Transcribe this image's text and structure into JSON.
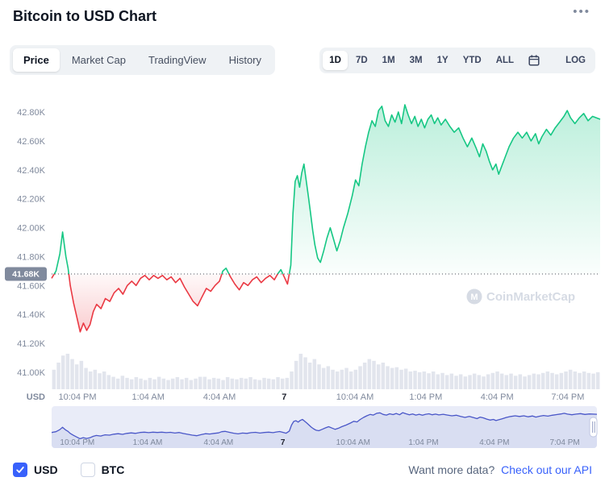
{
  "header": {
    "title": "Bitcoin to USD Chart",
    "menu_icon": "•••"
  },
  "tabs": {
    "active": "Price",
    "items": [
      "Price",
      "Market Cap",
      "TradingView",
      "History"
    ]
  },
  "ranges": {
    "active": "1D",
    "items": [
      "1D",
      "7D",
      "1M",
      "3M",
      "1Y",
      "YTD",
      "ALL"
    ],
    "log_label": "LOG"
  },
  "footer": {
    "usd_label": "USD",
    "usd_checked": true,
    "btc_label": "BTC",
    "btc_checked": false,
    "prompt": "Want more data?",
    "link_label": "Check out our API"
  },
  "chart_data": {
    "type": "line",
    "title": "Bitcoin to USD, 1-day chart",
    "watermark": "CoinMarketCap",
    "y_unit": "USD",
    "reference_price": 41680,
    "reference_label": "41.68K",
    "axis": {
      "price_min": 41.0,
      "price_max": 42.8,
      "grid": false
    },
    "y_ticks": [
      {
        "label": "42.80K",
        "value": 42.8
      },
      {
        "label": "42.60K",
        "value": 42.6
      },
      {
        "label": "42.40K",
        "value": 42.4
      },
      {
        "label": "42.20K",
        "value": 42.2
      },
      {
        "label": "42.00K",
        "value": 42.0
      },
      {
        "label": "41.80K",
        "value": 41.8
      },
      {
        "label": "41.60K",
        "value": 41.6
      },
      {
        "label": "41.40K",
        "value": 41.4
      },
      {
        "label": "41.20K",
        "value": 41.2
      },
      {
        "label": "41.00K",
        "value": 41.0
      }
    ],
    "x_labels": [
      {
        "label": "10:04 PM",
        "t": 0.047
      },
      {
        "label": "1:04 AM",
        "t": 0.176
      },
      {
        "label": "4:04 AM",
        "t": 0.306
      },
      {
        "label": "7",
        "t": 0.424,
        "bold": true
      },
      {
        "label": "10:04 AM",
        "t": 0.553
      },
      {
        "label": "1:04 PM",
        "t": 0.682
      },
      {
        "label": "4:04 PM",
        "t": 0.812
      },
      {
        "label": "7:04 PM",
        "t": 0.941
      }
    ],
    "points": [
      [
        0.0,
        41.65
      ],
      [
        0.008,
        41.7
      ],
      [
        0.015,
        41.82
      ],
      [
        0.02,
        41.97
      ],
      [
        0.026,
        41.8
      ],
      [
        0.03,
        41.72
      ],
      [
        0.034,
        41.6
      ],
      [
        0.04,
        41.48
      ],
      [
        0.046,
        41.38
      ],
      [
        0.052,
        41.28
      ],
      [
        0.058,
        41.34
      ],
      [
        0.064,
        41.29
      ],
      [
        0.07,
        41.33
      ],
      [
        0.076,
        41.42
      ],
      [
        0.082,
        41.47
      ],
      [
        0.09,
        41.44
      ],
      [
        0.098,
        41.51
      ],
      [
        0.106,
        41.49
      ],
      [
        0.114,
        41.55
      ],
      [
        0.122,
        41.58
      ],
      [
        0.13,
        41.54
      ],
      [
        0.138,
        41.6
      ],
      [
        0.146,
        41.63
      ],
      [
        0.154,
        41.6
      ],
      [
        0.162,
        41.65
      ],
      [
        0.17,
        41.67
      ],
      [
        0.178,
        41.64
      ],
      [
        0.186,
        41.67
      ],
      [
        0.194,
        41.65
      ],
      [
        0.202,
        41.67
      ],
      [
        0.21,
        41.64
      ],
      [
        0.218,
        41.66
      ],
      [
        0.226,
        41.62
      ],
      [
        0.234,
        41.65
      ],
      [
        0.242,
        41.59
      ],
      [
        0.25,
        41.54
      ],
      [
        0.258,
        41.49
      ],
      [
        0.266,
        41.46
      ],
      [
        0.274,
        41.52
      ],
      [
        0.282,
        41.58
      ],
      [
        0.29,
        41.56
      ],
      [
        0.298,
        41.6
      ],
      [
        0.306,
        41.63
      ],
      [
        0.312,
        41.7
      ],
      [
        0.318,
        41.72
      ],
      [
        0.326,
        41.66
      ],
      [
        0.334,
        41.61
      ],
      [
        0.342,
        41.57
      ],
      [
        0.35,
        41.62
      ],
      [
        0.358,
        41.6
      ],
      [
        0.366,
        41.64
      ],
      [
        0.374,
        41.66
      ],
      [
        0.382,
        41.62
      ],
      [
        0.39,
        41.65
      ],
      [
        0.398,
        41.67
      ],
      [
        0.406,
        41.64
      ],
      [
        0.412,
        41.68
      ],
      [
        0.418,
        41.71
      ],
      [
        0.424,
        41.66
      ],
      [
        0.43,
        41.61
      ],
      [
        0.436,
        41.74
      ],
      [
        0.44,
        42.1
      ],
      [
        0.444,
        42.32
      ],
      [
        0.448,
        42.36
      ],
      [
        0.452,
        42.28
      ],
      [
        0.456,
        42.38
      ],
      [
        0.46,
        42.44
      ],
      [
        0.464,
        42.33
      ],
      [
        0.468,
        42.22
      ],
      [
        0.472,
        42.1
      ],
      [
        0.476,
        41.98
      ],
      [
        0.48,
        41.88
      ],
      [
        0.485,
        41.79
      ],
      [
        0.49,
        41.76
      ],
      [
        0.496,
        41.84
      ],
      [
        0.502,
        41.93
      ],
      [
        0.508,
        42.0
      ],
      [
        0.514,
        41.92
      ],
      [
        0.52,
        41.84
      ],
      [
        0.526,
        41.91
      ],
      [
        0.532,
        42.0
      ],
      [
        0.54,
        42.1
      ],
      [
        0.548,
        42.22
      ],
      [
        0.554,
        42.33
      ],
      [
        0.56,
        42.29
      ],
      [
        0.566,
        42.44
      ],
      [
        0.572,
        42.56
      ],
      [
        0.578,
        42.66
      ],
      [
        0.584,
        42.74
      ],
      [
        0.59,
        42.7
      ],
      [
        0.596,
        42.81
      ],
      [
        0.602,
        42.84
      ],
      [
        0.608,
        42.74
      ],
      [
        0.614,
        42.7
      ],
      [
        0.62,
        42.78
      ],
      [
        0.626,
        42.73
      ],
      [
        0.632,
        42.8
      ],
      [
        0.638,
        42.72
      ],
      [
        0.644,
        42.85
      ],
      [
        0.65,
        42.78
      ],
      [
        0.656,
        42.72
      ],
      [
        0.662,
        42.77
      ],
      [
        0.668,
        42.7
      ],
      [
        0.674,
        42.75
      ],
      [
        0.68,
        42.69
      ],
      [
        0.686,
        42.75
      ],
      [
        0.692,
        42.78
      ],
      [
        0.698,
        42.72
      ],
      [
        0.704,
        42.76
      ],
      [
        0.71,
        42.71
      ],
      [
        0.718,
        42.75
      ],
      [
        0.726,
        42.7
      ],
      [
        0.734,
        42.66
      ],
      [
        0.742,
        42.69
      ],
      [
        0.75,
        42.62
      ],
      [
        0.758,
        42.56
      ],
      [
        0.766,
        42.62
      ],
      [
        0.774,
        42.55
      ],
      [
        0.78,
        42.49
      ],
      [
        0.786,
        42.58
      ],
      [
        0.792,
        42.53
      ],
      [
        0.798,
        42.46
      ],
      [
        0.804,
        42.4
      ],
      [
        0.81,
        42.44
      ],
      [
        0.815,
        42.37
      ],
      [
        0.82,
        42.42
      ],
      [
        0.826,
        42.48
      ],
      [
        0.834,
        42.56
      ],
      [
        0.842,
        42.62
      ],
      [
        0.85,
        42.66
      ],
      [
        0.858,
        42.62
      ],
      [
        0.866,
        42.66
      ],
      [
        0.874,
        42.6
      ],
      [
        0.882,
        42.65
      ],
      [
        0.888,
        42.58
      ],
      [
        0.894,
        42.63
      ],
      [
        0.902,
        42.68
      ],
      [
        0.91,
        42.64
      ],
      [
        0.918,
        42.69
      ],
      [
        0.926,
        42.73
      ],
      [
        0.934,
        42.77
      ],
      [
        0.94,
        42.81
      ],
      [
        0.946,
        42.76
      ],
      [
        0.954,
        42.72
      ],
      [
        0.962,
        42.76
      ],
      [
        0.97,
        42.79
      ],
      [
        0.978,
        42.74
      ],
      [
        0.986,
        42.77
      ],
      [
        1.0,
        42.75
      ]
    ],
    "volumes": [
      0.55,
      0.75,
      0.95,
      1.0,
      0.85,
      0.7,
      0.8,
      0.6,
      0.5,
      0.55,
      0.45,
      0.5,
      0.4,
      0.35,
      0.3,
      0.38,
      0.32,
      0.28,
      0.34,
      0.3,
      0.26,
      0.32,
      0.28,
      0.35,
      0.3,
      0.26,
      0.3,
      0.34,
      0.28,
      0.32,
      0.26,
      0.3,
      0.35,
      0.35,
      0.28,
      0.32,
      0.3,
      0.26,
      0.34,
      0.3,
      0.28,
      0.32,
      0.3,
      0.34,
      0.28,
      0.26,
      0.32,
      0.3,
      0.28,
      0.34,
      0.3,
      0.32,
      0.5,
      0.8,
      1.0,
      0.9,
      0.75,
      0.85,
      0.7,
      0.6,
      0.65,
      0.55,
      0.5,
      0.55,
      0.6,
      0.5,
      0.55,
      0.65,
      0.75,
      0.85,
      0.8,
      0.7,
      0.75,
      0.65,
      0.6,
      0.62,
      0.55,
      0.58,
      0.5,
      0.52,
      0.48,
      0.5,
      0.45,
      0.5,
      0.42,
      0.46,
      0.4,
      0.44,
      0.38,
      0.42,
      0.36,
      0.4,
      0.44,
      0.4,
      0.36,
      0.42,
      0.46,
      0.5,
      0.44,
      0.4,
      0.44,
      0.38,
      0.42,
      0.36,
      0.4,
      0.44,
      0.42,
      0.46,
      0.5,
      0.46,
      0.42,
      0.46,
      0.5,
      0.55,
      0.5,
      0.46,
      0.5,
      0.46,
      0.44,
      0.48
    ],
    "colors": {
      "green": "#16c784",
      "red": "#ea3943",
      "badge": "#808a9d",
      "volume": "#e2e5ed",
      "label": "#808a9d",
      "bold_label": "#222531",
      "nav_bg": "#e9ecf8",
      "nav_fill": "#d9def2",
      "nav_line": "#4a57c8",
      "link_blue": "#3861fb",
      "watermark": "#d2d8e2"
    }
  }
}
